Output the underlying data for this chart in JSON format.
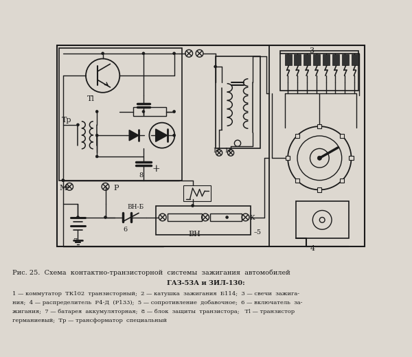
{
  "bg_color": "#ddd8d0",
  "line_color": "#1a1a1a",
  "title_line1": "Рис. 25.  Схема  контактно-транзисторной  системы  зажигания  автомобилей",
  "title_line2": "ГАЗ-53А и ЗИЛ-130:",
  "caption_lines": [
    "1 — коммутатор  ТК102  транзисторный;  2 — катушка  зажигания  Б114;  3 — свечи  зажига-",
    "ния;  4 — распределитель  Р4-Д  (Р133);  5 — сопротивление  добавочное;  6 — включатель  за-",
    "жигания;  7 — батарея  аккумуляторная;  8 — блок  защиты  транзистора;   Тl — транзистор",
    "германиевый;  Тр — трансформатор  специальный"
  ]
}
